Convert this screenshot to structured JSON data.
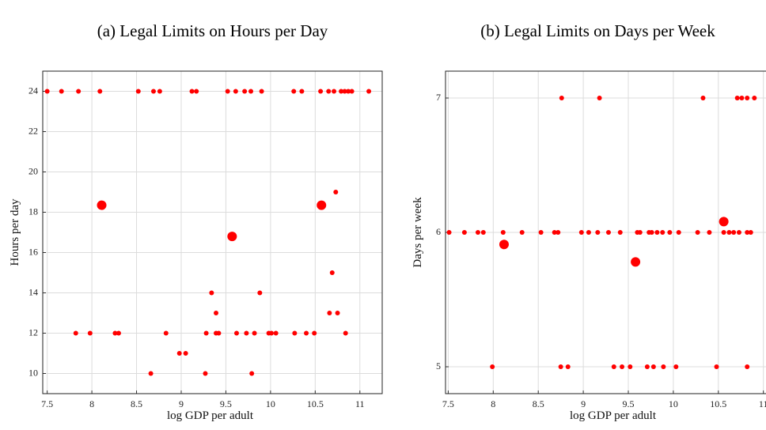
{
  "chart_data": [
    {
      "type": "scatter",
      "title": "(a) Legal Limits on Hours per Day",
      "xlabel": "log GDP per adult",
      "ylabel": "Hours per day",
      "xlim": [
        7.45,
        11.25
      ],
      "ylim": [
        9,
        25
      ],
      "xticks": [
        7.5,
        8,
        8.5,
        9,
        9.5,
        10,
        10.5,
        11
      ],
      "yticks": [
        10,
        12,
        14,
        16,
        18,
        20,
        22,
        24
      ],
      "grid": true,
      "series": [
        {
          "color": "#ff0000",
          "marker_size": 3,
          "x": [
            7.5,
            7.66,
            7.85,
            8.09,
            8.52,
            8.69,
            8.76,
            9.12,
            9.17,
            9.52,
            9.61,
            9.71,
            9.78,
            9.9,
            10.26,
            10.35,
            10.56,
            10.65,
            10.71,
            10.79,
            10.83,
            10.87,
            10.91,
            11.1,
            7.82,
            7.98,
            8.26,
            8.3,
            8.83,
            9.28,
            9.39,
            9.42,
            9.62,
            9.73,
            9.82,
            9.98,
            10.01,
            10.06,
            10.27,
            10.4,
            10.49,
            10.84,
            8.66,
            9.27,
            9.79,
            8.98,
            9.05,
            9.39,
            10.66,
            10.75,
            9.34,
            9.88,
            10.69,
            10.73
          ],
          "values": [
            24,
            24,
            24,
            24,
            24,
            24,
            24,
            24,
            24,
            24,
            24,
            24,
            24,
            24,
            24,
            24,
            24,
            24,
            24,
            24,
            24,
            24,
            24,
            24,
            12,
            12,
            12,
            12,
            12,
            12,
            12,
            12,
            12,
            12,
            12,
            12,
            12,
            12,
            12,
            12,
            12,
            12,
            10,
            10,
            10,
            11,
            11,
            13,
            13,
            13,
            14,
            14,
            15,
            19
          ]
        },
        {
          "color": "#ff0000",
          "marker_size": 6,
          "x": [
            8.11,
            9.57,
            10.57
          ],
          "values": [
            18.35,
            16.8,
            18.35
          ]
        }
      ]
    },
    {
      "type": "scatter",
      "title": "(b) Legal Limits on Days per Week",
      "xlabel": "log GDP per adult",
      "ylabel": "Days per week",
      "xlim": [
        7.47,
        11.24
      ],
      "ylim": [
        4.8,
        7.2
      ],
      "xticks": [
        7.5,
        8,
        8.5,
        9,
        9.5,
        10,
        10.5,
        11
      ],
      "yticks": [
        5,
        6,
        7
      ],
      "grid": true,
      "series": [
        {
          "color": "#ff0000",
          "marker_size": 3,
          "x": [
            8.76,
            9.18,
            10.33,
            10.71,
            10.76,
            10.82,
            10.9,
            7.51,
            7.68,
            7.83,
            7.89,
            8.11,
            8.32,
            8.53,
            8.68,
            8.72,
            8.98,
            9.06,
            9.16,
            9.28,
            9.41,
            9.6,
            9.63,
            9.73,
            9.76,
            9.82,
            9.88,
            9.96,
            10.06,
            10.27,
            10.4,
            10.56,
            10.62,
            10.67,
            10.73,
            10.82,
            10.86,
            7.99,
            8.75,
            8.83,
            9.34,
            9.43,
            9.52,
            9.71,
            9.78,
            9.89,
            10.03,
            10.48,
            10.82
          ],
          "values": [
            7,
            7,
            7,
            7,
            7,
            7,
            7,
            6,
            6,
            6,
            6,
            6,
            6,
            6,
            6,
            6,
            6,
            6,
            6,
            6,
            6,
            6,
            6,
            6,
            6,
            6,
            6,
            6,
            6,
            6,
            6,
            6,
            6,
            6,
            6,
            6,
            6,
            5,
            5,
            5,
            5,
            5,
            5,
            5,
            5,
            5,
            5,
            5,
            5
          ]
        },
        {
          "color": "#ff0000",
          "marker_size": 6,
          "x": [
            8.12,
            9.58,
            10.56
          ],
          "values": [
            5.91,
            5.78,
            6.08
          ]
        }
      ]
    }
  ]
}
